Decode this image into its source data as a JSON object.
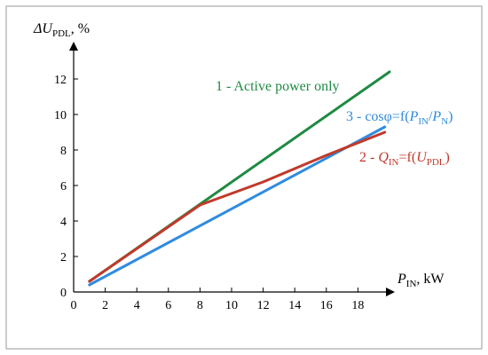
{
  "chart_data": {
    "type": "line",
    "xlabel": {
      "main": "P",
      "sub": "IN",
      "suffix": ", kW"
    },
    "ylabel": {
      "main": "ΔU",
      "sub": "PDL",
      "suffix": ", %"
    },
    "x_ticks": [
      0,
      2,
      4,
      6,
      8,
      10,
      12,
      14,
      16,
      18
    ],
    "y_ticks": [
      0,
      2,
      4,
      6,
      8,
      10,
      12
    ],
    "xlim": [
      0,
      20
    ],
    "ylim": [
      0,
      13
    ],
    "grid": false,
    "series": [
      {
        "label_parts": [
          {
            "t": "1 - Active power only"
          }
        ],
        "color": "#1e8a43",
        "points": [
          [
            1,
            0.6
          ],
          [
            20,
            12.4
          ]
        ]
      },
      {
        "label_parts": [
          {
            "t": "3 - cosφ=f("
          },
          {
            "t": "P",
            "i": true
          },
          {
            "t": "IN",
            "sub": true
          },
          {
            "t": "/"
          },
          {
            "t": "P",
            "i": true
          },
          {
            "t": "N",
            "sub": true
          },
          {
            "t": ")"
          }
        ],
        "color": "#2f8be0",
        "points": [
          [
            1,
            0.4
          ],
          [
            19.7,
            9.3
          ]
        ]
      },
      {
        "label_parts": [
          {
            "t": "2 - "
          },
          {
            "t": "Q",
            "i": true
          },
          {
            "t": "IN",
            "sub": true
          },
          {
            "t": "=f("
          },
          {
            "t": "U",
            "i": true
          },
          {
            "t": "PDL",
            "sub": true
          },
          {
            "t": ")"
          }
        ],
        "color": "#c0392b",
        "points": [
          [
            1,
            0.6
          ],
          [
            8,
            4.9
          ],
          [
            12,
            6.2
          ],
          [
            16,
            7.7
          ],
          [
            19.7,
            9.0
          ]
        ]
      }
    ]
  }
}
